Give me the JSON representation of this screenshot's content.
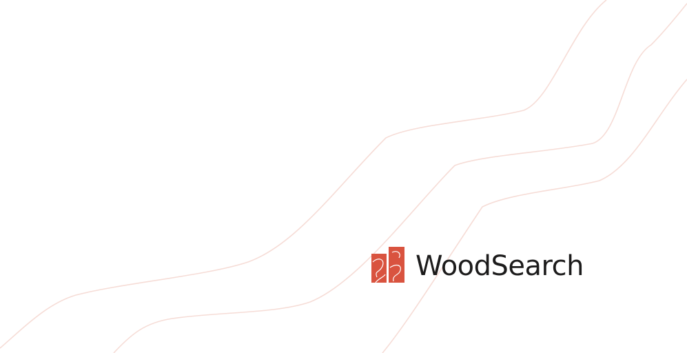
{
  "brand": {
    "name": "WoodSearch",
    "accent_color": "#d9533f",
    "text_color": "#1c1b1b",
    "logo_icon": "woodsearch-logo-icon"
  },
  "background": {
    "color": "#ffffff",
    "line_color": "#f6d9d3"
  }
}
